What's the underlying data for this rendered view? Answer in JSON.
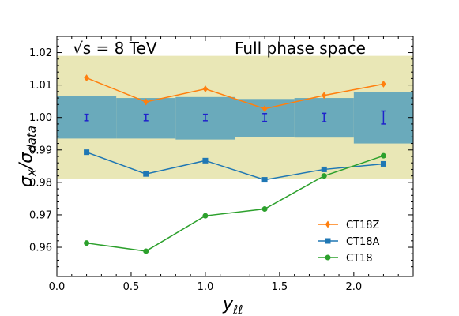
{
  "chart_data": {
    "type": "line",
    "title": "",
    "xlabel": "y_{ℓℓ}",
    "ylabel": "σ_x/σ_data",
    "xlim": [
      0.0,
      2.4
    ],
    "ylim": [
      0.951,
      1.025
    ],
    "xticks": [
      0.0,
      0.5,
      1.0,
      1.5,
      2.0
    ],
    "xtick_labels": [
      "0.0",
      "0.5",
      "1.0",
      "1.5",
      "2.0"
    ],
    "yticks": [
      0.96,
      0.97,
      0.98,
      0.99,
      1.0,
      1.01,
      1.02
    ],
    "ytick_labels": [
      "0.96",
      "0.97",
      "0.98",
      "0.99",
      "1.00",
      "1.01",
      "1.02"
    ],
    "grid": false,
    "legend_position": "bottom-right",
    "annotations": {
      "energy": "√s = 8 TeV",
      "region": "Full phase space"
    },
    "bands": [
      {
        "color": "#e9e7b6",
        "x_range": [
          0.0,
          2.4
        ],
        "y_range": [
          0.981,
          1.019
        ]
      }
    ],
    "bins": [
      {
        "x_range": [
          0.0,
          0.4
        ],
        "y_range": [
          0.9935,
          1.0065
        ],
        "center": 0.2,
        "err": 0.001
      },
      {
        "x_range": [
          0.4,
          0.8
        ],
        "y_range": [
          0.9935,
          1.006
        ],
        "center": 0.6,
        "err": 0.001
      },
      {
        "x_range": [
          0.8,
          1.2
        ],
        "y_range": [
          0.9932,
          1.0063
        ],
        "center": 1.0,
        "err": 0.001
      },
      {
        "x_range": [
          1.2,
          1.6
        ],
        "y_range": [
          0.994,
          1.0057
        ],
        "center": 1.4,
        "err": 0.0012
      },
      {
        "x_range": [
          1.6,
          2.0
        ],
        "y_range": [
          0.9938,
          1.006
        ],
        "center": 1.8,
        "err": 0.0013
      },
      {
        "x_range": [
          2.0,
          2.4
        ],
        "y_range": [
          0.992,
          1.0078
        ],
        "center": 2.2,
        "err": 0.002
      }
    ],
    "bin_color": "#6aaabb",
    "errorbar_color": "#1f22cc",
    "series": [
      {
        "name": "CT18Z",
        "color": "#ff7f0e",
        "marker": "diamond",
        "x": [
          0.2,
          0.6,
          1.0,
          1.4,
          1.8,
          2.2
        ],
        "y": [
          1.0122,
          1.0048,
          1.0088,
          1.0027,
          1.0068,
          1.0103
        ]
      },
      {
        "name": "CT18A",
        "color": "#1f77b4",
        "marker": "square",
        "x": [
          0.2,
          0.6,
          1.0,
          1.4,
          1.8,
          2.2
        ],
        "y": [
          0.9893,
          0.9826,
          0.9867,
          0.9808,
          0.984,
          0.9857
        ]
      },
      {
        "name": "CT18",
        "color": "#2ca02c",
        "marker": "circle",
        "x": [
          0.2,
          0.6,
          1.0,
          1.4,
          1.8,
          2.2
        ],
        "y": [
          0.9613,
          0.9588,
          0.9697,
          0.9718,
          0.982,
          0.9882
        ]
      }
    ]
  }
}
